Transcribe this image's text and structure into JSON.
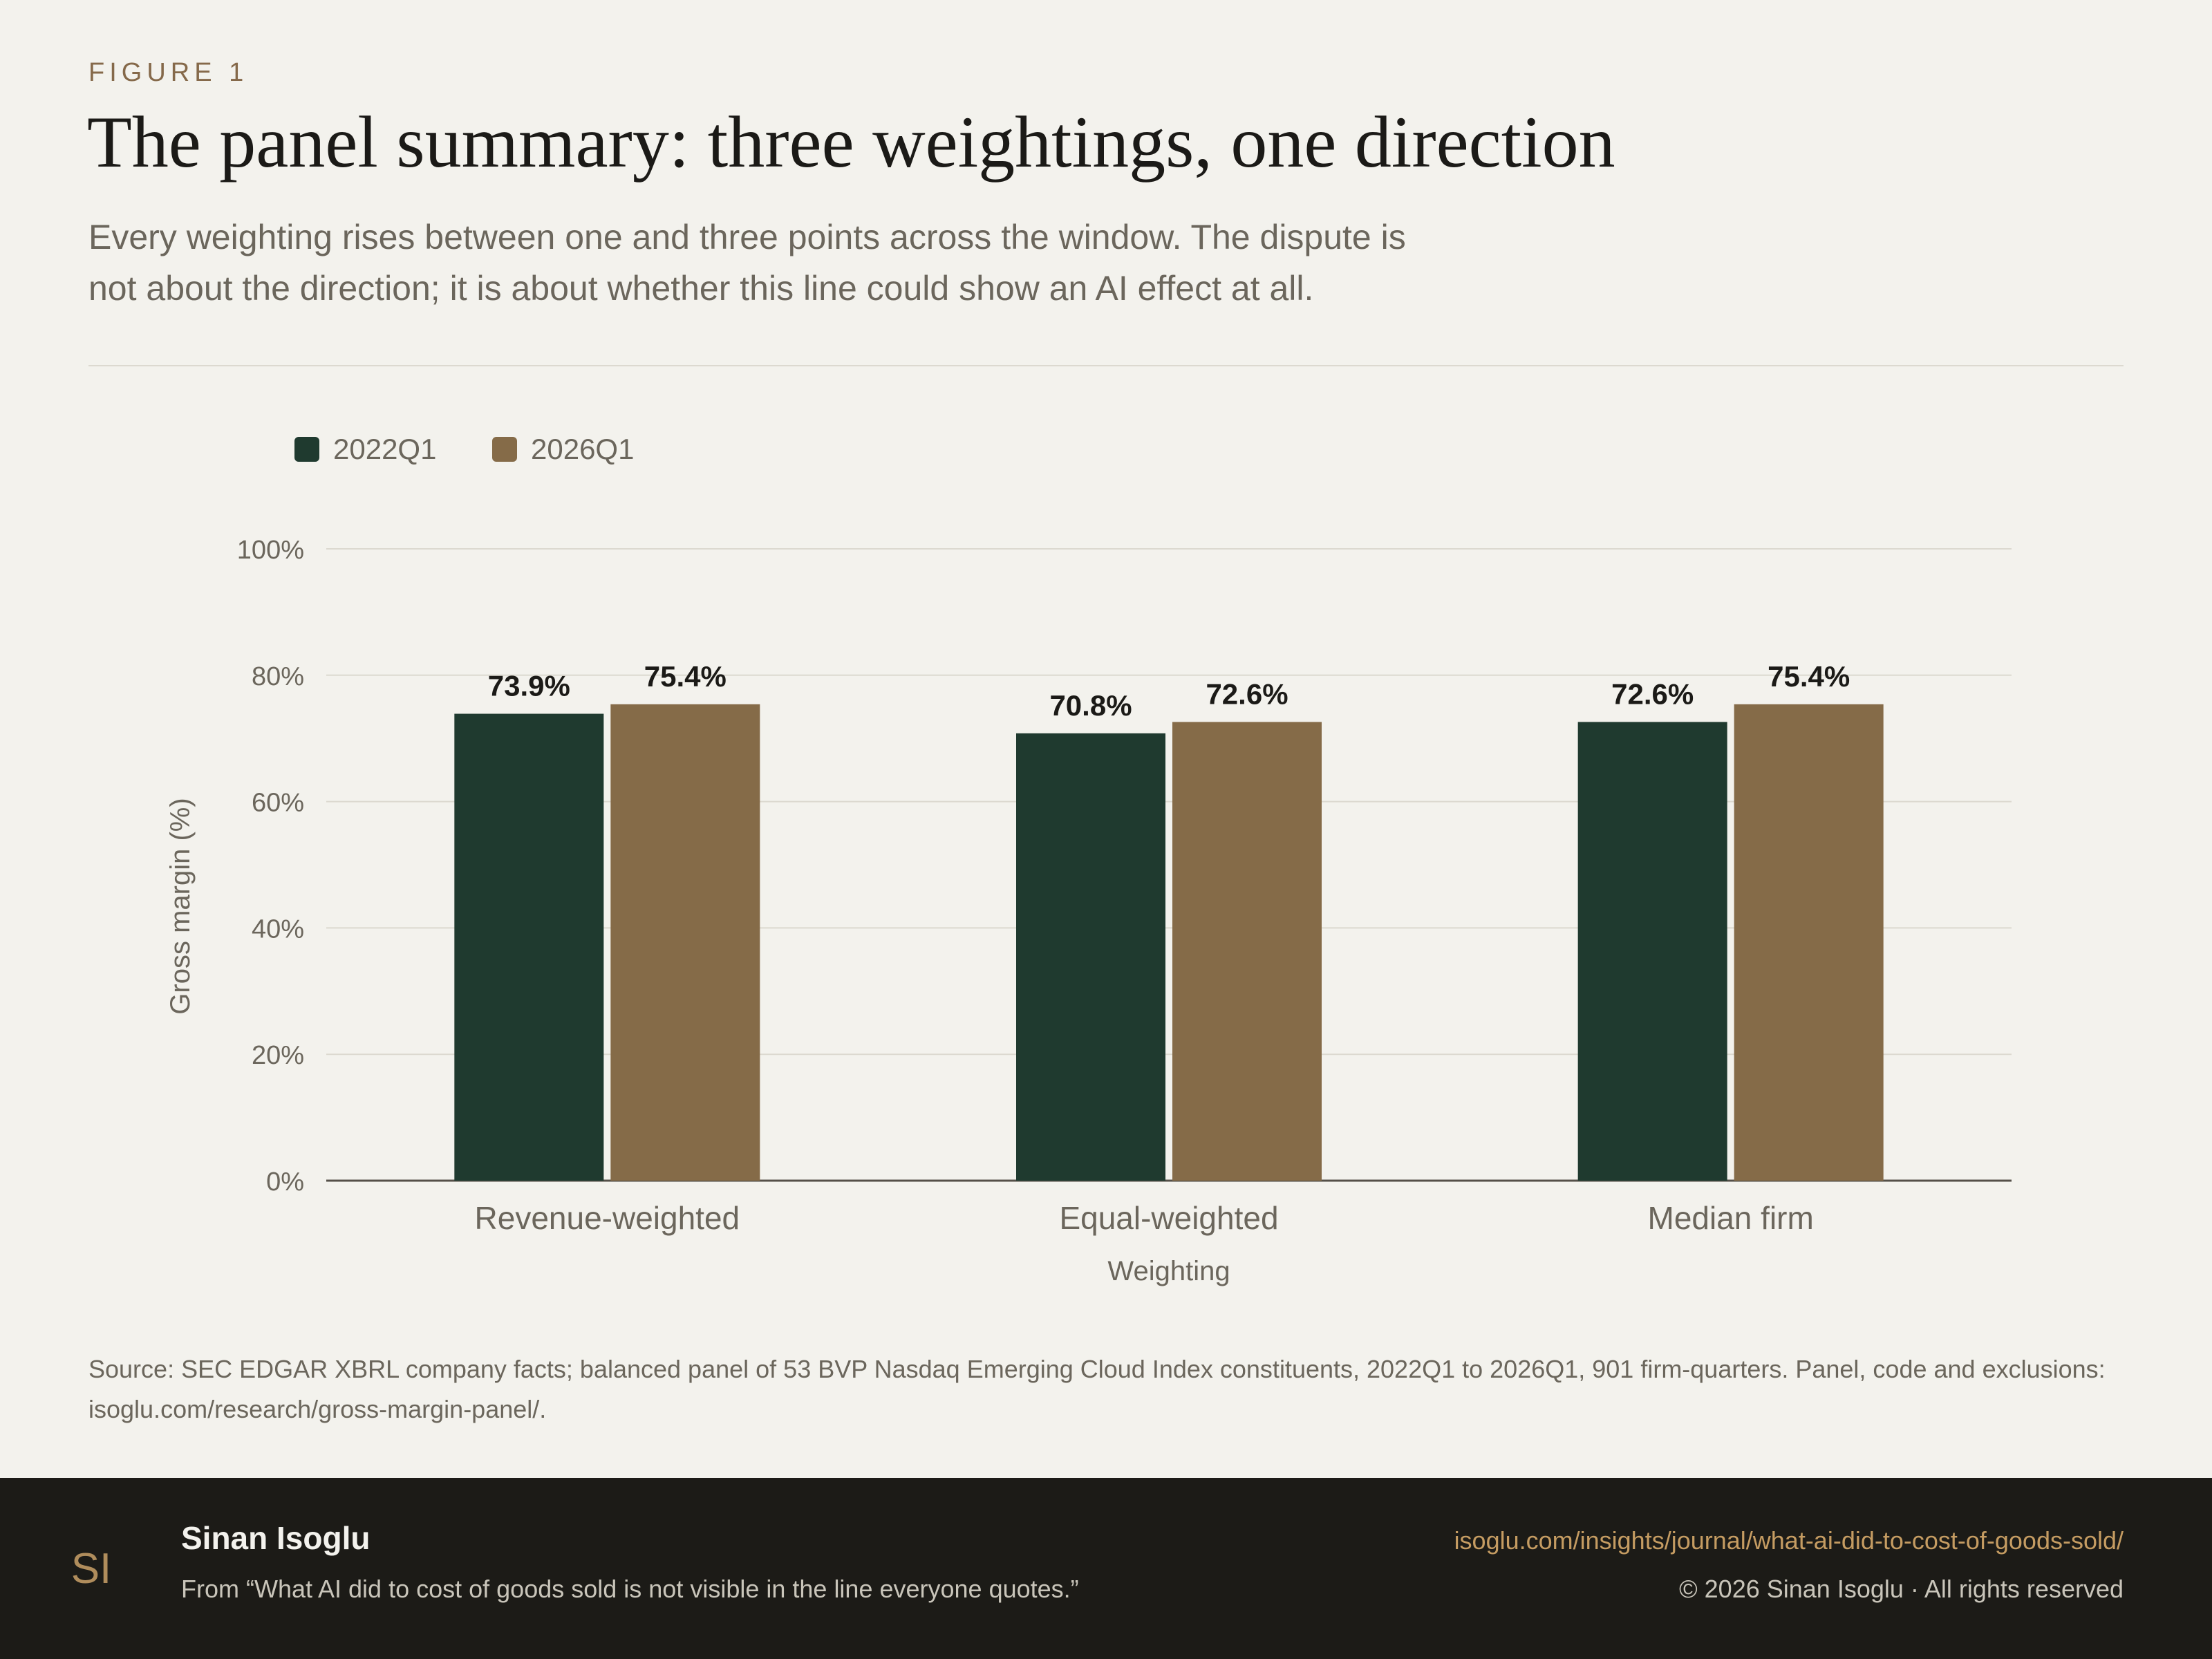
{
  "header": {
    "eyebrow": "FIGURE 1",
    "title": "The panel summary: three weightings, one direction",
    "subtitle": "Every weighting rises between one and three points across the window. The dispute is not about the direction; it is about whether this line could show an AI effect at all."
  },
  "chart_data": {
    "type": "bar",
    "categories": [
      "Revenue-weighted",
      "Equal-weighted",
      "Median firm"
    ],
    "series": [
      {
        "name": "2022Q1",
        "values": [
          73.9,
          70.8,
          72.6
        ],
        "labels": [
          "73.9%",
          "70.8%",
          "72.6%"
        ],
        "color": "#1f3a2f"
      },
      {
        "name": "2026Q1",
        "values": [
          75.4,
          72.6,
          75.4
        ],
        "labels": [
          "75.4%",
          "72.6%",
          "75.4%"
        ],
        "color": "#856b48"
      }
    ],
    "xlabel": "Weighting",
    "ylabel": "Gross margin (%)",
    "ylim": [
      0,
      100
    ],
    "yticks": [
      {
        "value": 0,
        "label": "0%"
      },
      {
        "value": 20,
        "label": "20%"
      },
      {
        "value": 40,
        "label": "40%"
      },
      {
        "value": 60,
        "label": "60%"
      },
      {
        "value": 80,
        "label": "80%"
      },
      {
        "value": 100,
        "label": "100%"
      }
    ],
    "grid": true,
    "legend_position": "top-left"
  },
  "source": "Source: SEC EDGAR XBRL company facts; balanced panel of 53 BVP Nasdaq Emerging Cloud Index constituents, 2022Q1 to 2026Q1, 901 firm-quarters. Panel, code and exclusions: isoglu.com/research/gross-margin-panel/.",
  "footer": {
    "logo_text": "SI",
    "author": "Sinan Isoglu",
    "from": "From “What AI did to cost of goods sold is not visible in the line everyone quotes.”",
    "url": "isoglu.com/insights/journal/what-ai-did-to-cost-of-goods-sold/",
    "copyright": "© 2026 Sinan Isoglu · All rights reserved"
  }
}
